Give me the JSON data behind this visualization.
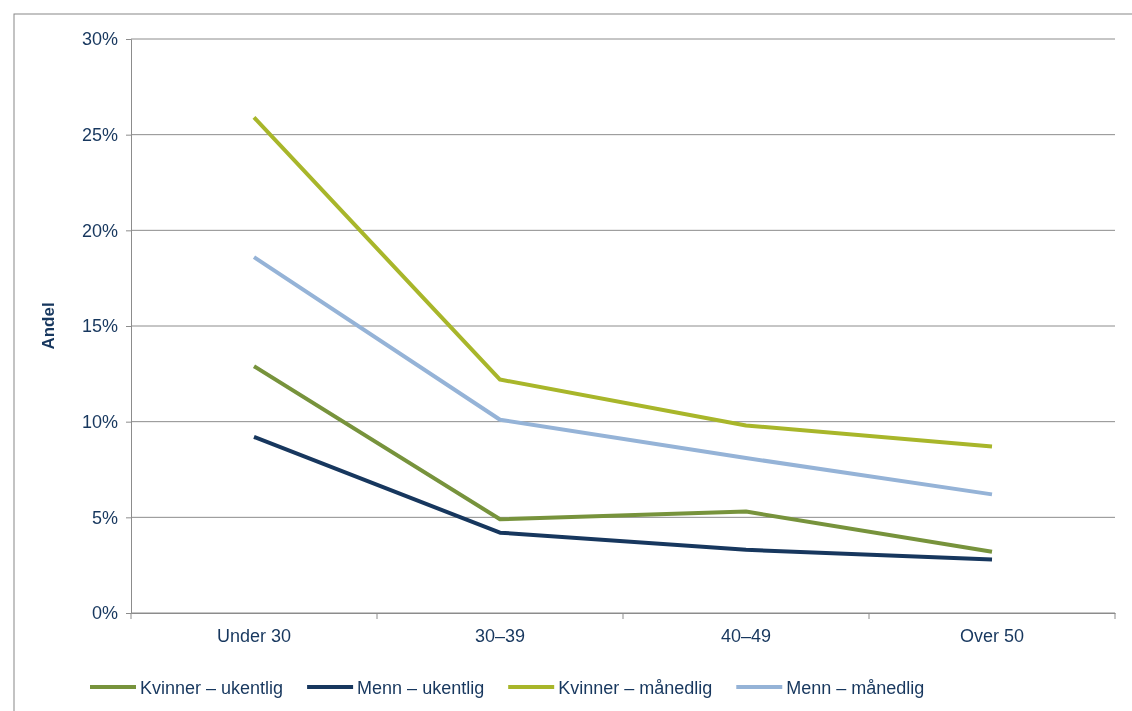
{
  "chart_data": {
    "type": "line",
    "ylabel": "Andel",
    "categories": [
      "Under 30",
      "30–39",
      "40–49",
      "Over 50"
    ],
    "series": [
      {
        "name": "Kvinner – ukentlig",
        "color": "#77933c",
        "values": [
          12.9,
          4.9,
          5.3,
          3.2
        ]
      },
      {
        "name": "Menn – ukentlig",
        "color": "#17375e",
        "values": [
          9.2,
          4.2,
          3.3,
          2.8
        ]
      },
      {
        "name": "Kvinner – månedlig",
        "color": "#a8b62a",
        "values": [
          25.9,
          12.2,
          9.8,
          8.7
        ]
      },
      {
        "name": "Menn – månedlig",
        "color": "#95b3d7",
        "values": [
          18.6,
          10.1,
          8.1,
          6.2
        ]
      }
    ],
    "ylim": [
      0,
      30
    ],
    "yticks": [
      {
        "value": 0,
        "label": "0%"
      },
      {
        "value": 5,
        "label": "5%"
      },
      {
        "value": 10,
        "label": "10%"
      },
      {
        "value": 15,
        "label": "15%"
      },
      {
        "value": 20,
        "label": "20%"
      },
      {
        "value": 25,
        "label": "25%"
      },
      {
        "value": 30,
        "label": "30%"
      }
    ],
    "grid": "y",
    "legend": "bottom",
    "marker": "none",
    "line_style": "solid"
  }
}
